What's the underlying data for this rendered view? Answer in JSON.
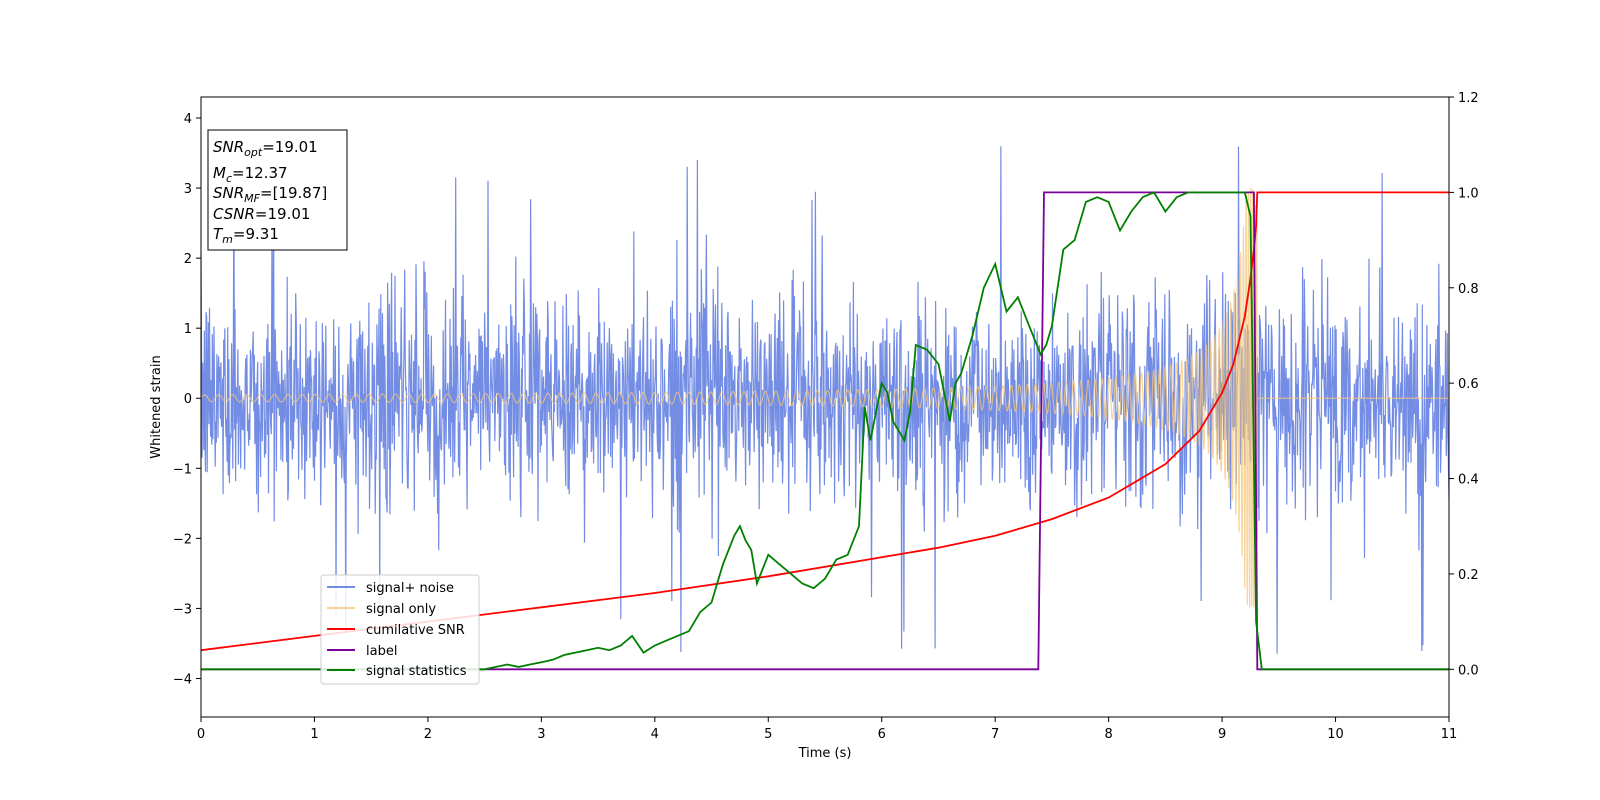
{
  "chart_data": {
    "type": "line",
    "xlabel": "Time (s)",
    "ylabel": "Whitened strain",
    "xlim": [
      0,
      11
    ],
    "ylim": [
      -4.55,
      4.3
    ],
    "y2lim": [
      -0.1,
      1.2
    ],
    "x_ticks": [
      "0",
      "1",
      "2",
      "3",
      "4",
      "5",
      "6",
      "7",
      "8",
      "9",
      "10",
      "11"
    ],
    "y_ticks": [
      "4",
      "3",
      "2",
      "1",
      "0",
      "−1",
      "−2",
      "−3",
      "−4"
    ],
    "y2_ticks": [
      "1.2",
      "1.0",
      "0.8",
      "0.6",
      "0.4",
      "0.2",
      "0.0"
    ],
    "grid": false,
    "legend_position": "lower-left",
    "info_box": {
      "snr_opt_main": "SNR",
      "snr_opt_sub": "opt",
      "snr_opt_val": "=19.01",
      "mc_main": "M",
      "mc_sub": "c",
      "mc_val": "=12.37",
      "snr_mf_main": "SNR",
      "snr_mf_sub": "MF",
      "snr_mf_val": "=[19.87]",
      "csnr_main": "CSNR",
      "csnr_val": "=19.01",
      "tm_main": "T",
      "tm_sub": "m",
      "tm_val": "=9.31"
    },
    "series": [
      {
        "name": "signal+ noise",
        "axis": "left",
        "color": "#6b86e3",
        "kind": "noise",
        "description_values": {
          "mean": 0,
          "std": 0.75,
          "max_peak": 3.9,
          "min_peak": -3.85
        }
      },
      {
        "name": "signal only",
        "axis": "left",
        "color": "#f5c77a",
        "kind": "chirp",
        "chirp": {
          "t_merger": 9.31,
          "amp_start": 0.05,
          "amp_peak": 3.0
        }
      },
      {
        "name": "cumilative SNR",
        "axis": "right",
        "color": "#ff0000",
        "x": [
          0,
          1,
          2,
          3,
          4,
          5,
          6,
          6.5,
          7,
          7.5,
          8,
          8.5,
          8.8,
          9.0,
          9.1,
          9.2,
          9.25,
          9.28,
          9.3,
          9.31,
          11
        ],
        "values": [
          0.04,
          0.07,
          0.1,
          0.13,
          0.16,
          0.195,
          0.235,
          0.255,
          0.28,
          0.315,
          0.36,
          0.43,
          0.5,
          0.58,
          0.64,
          0.74,
          0.82,
          0.88,
          0.93,
          1.0,
          1.0
        ]
      },
      {
        "name": "label",
        "axis": "right",
        "color": "#7b0099",
        "x": [
          0,
          7.38,
          7.43,
          9.28,
          9.31,
          11
        ],
        "values": [
          0,
          0,
          1,
          1,
          0,
          0
        ]
      },
      {
        "name": "signal statistics",
        "axis": "right",
        "color": "#008000",
        "x": [
          0,
          2.5,
          2.6,
          2.7,
          2.8,
          2.9,
          3.0,
          3.1,
          3.2,
          3.3,
          3.4,
          3.5,
          3.6,
          3.7,
          3.8,
          3.9,
          4.0,
          4.1,
          4.2,
          4.3,
          4.4,
          4.5,
          4.6,
          4.7,
          4.75,
          4.8,
          4.85,
          4.9,
          5.0,
          5.1,
          5.2,
          5.3,
          5.4,
          5.5,
          5.6,
          5.7,
          5.8,
          5.85,
          5.9,
          6.0,
          6.05,
          6.1,
          6.2,
          6.25,
          6.3,
          6.4,
          6.5,
          6.6,
          6.65,
          6.7,
          6.8,
          6.9,
          7.0,
          7.1,
          7.2,
          7.3,
          7.4,
          7.45,
          7.5,
          7.6,
          7.7,
          7.8,
          7.9,
          8.0,
          8.1,
          8.2,
          8.3,
          8.4,
          8.5,
          8.6,
          8.7,
          8.8,
          9.0,
          9.1,
          9.2,
          9.25,
          9.3,
          9.35,
          9.5,
          11
        ],
        "values": [
          0,
          0,
          0.005,
          0.01,
          0.005,
          0.01,
          0.015,
          0.02,
          0.03,
          0.035,
          0.04,
          0.045,
          0.04,
          0.05,
          0.07,
          0.035,
          0.05,
          0.06,
          0.07,
          0.08,
          0.12,
          0.14,
          0.22,
          0.28,
          0.3,
          0.27,
          0.25,
          0.18,
          0.24,
          0.22,
          0.2,
          0.18,
          0.17,
          0.19,
          0.23,
          0.24,
          0.3,
          0.55,
          0.48,
          0.6,
          0.58,
          0.52,
          0.48,
          0.54,
          0.68,
          0.67,
          0.64,
          0.52,
          0.6,
          0.62,
          0.7,
          0.8,
          0.85,
          0.75,
          0.78,
          0.72,
          0.66,
          0.68,
          0.72,
          0.88,
          0.9,
          0.98,
          0.99,
          0.98,
          0.92,
          0.96,
          0.99,
          1.0,
          0.96,
          0.99,
          1.0,
          1.0,
          1.0,
          1.0,
          1.0,
          0.95,
          0.1,
          0.0,
          0.0,
          0.0
        ]
      }
    ]
  }
}
